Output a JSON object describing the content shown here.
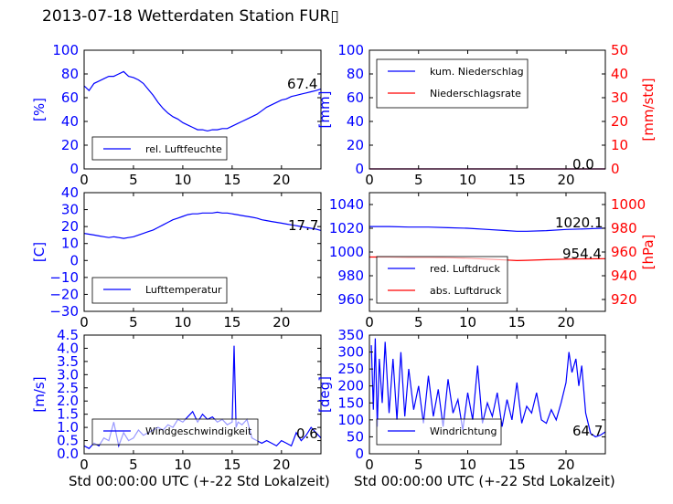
{
  "title": "2013-07-18 Wetterdaten Station FUR▯",
  "colors": {
    "left_axis": "#0000ff",
    "right_axis": "#ff0000",
    "frame": "#000000"
  },
  "xlabel": "Std 00:00:00 UTC (+-22 Std Lokalzeit)",
  "chart_data": [
    {
      "id": "humidity",
      "type": "line",
      "xlim": [
        0,
        24
      ],
      "ylim": [
        0,
        100
      ],
      "xticks": [
        "0",
        "5",
        "10",
        "15",
        "20"
      ],
      "yticks": [
        "0",
        "20",
        "40",
        "60",
        "80",
        "100"
      ],
      "ylabel": "[%]",
      "last_value_label": "67.4",
      "legend": [
        "rel. Luftfeuchte"
      ],
      "series": [
        {
          "name": "rel. Luftfeuchte",
          "color": "#0000ff",
          "x": [
            0,
            0.5,
            1,
            1.5,
            2,
            2.5,
            3,
            3.5,
            4,
            4.5,
            5,
            5.5,
            6,
            6.5,
            7,
            7.5,
            8,
            8.5,
            9,
            9.5,
            10,
            10.5,
            11,
            11.5,
            12,
            12.5,
            13,
            13.5,
            14,
            14.5,
            15,
            15.5,
            16,
            16.5,
            17,
            17.5,
            18,
            18.5,
            19,
            19.5,
            20,
            20.5,
            21,
            21.5,
            22,
            22.5,
            23,
            23.5,
            24
          ],
          "y": [
            70,
            66,
            72,
            74,
            76,
            78,
            78,
            80,
            82,
            78,
            77,
            75,
            72,
            67,
            62,
            56,
            51,
            47,
            44,
            42,
            39,
            37,
            35,
            33,
            33,
            32,
            33,
            33,
            34,
            34,
            36,
            38,
            40,
            42,
            44,
            46,
            49,
            52,
            54,
            56,
            58,
            59,
            61,
            62,
            63,
            64,
            65,
            66,
            67.4
          ]
        }
      ]
    },
    {
      "id": "precipitation",
      "type": "line",
      "xlim": [
        0,
        24
      ],
      "ylim": [
        0,
        100
      ],
      "ylim_right": [
        0,
        50
      ],
      "xticks": [
        "0",
        "5",
        "10",
        "15",
        "20"
      ],
      "yticks": [
        "0",
        "20",
        "40",
        "60",
        "80",
        "100"
      ],
      "yticks_right": [
        "0",
        "10",
        "20",
        "30",
        "40",
        "50"
      ],
      "ylabel": "[mm]",
      "ylabel_right": "[mm/std]",
      "last_value_label": "0.0",
      "legend": [
        "kum. Niederschlag",
        "Niederschlagsrate"
      ],
      "series": [
        {
          "name": "kum. Niederschlag",
          "color": "#0000ff",
          "axis": "left",
          "x": [
            0,
            24
          ],
          "y": [
            0,
            0
          ]
        },
        {
          "name": "Niederschlagsrate",
          "color": "#ff0000",
          "axis": "right",
          "x": [
            0,
            24
          ],
          "y": [
            0,
            0
          ]
        }
      ]
    },
    {
      "id": "temperature",
      "type": "line",
      "xlim": [
        0,
        24
      ],
      "ylim": [
        -30,
        40
      ],
      "xticks": [
        "0",
        "5",
        "10",
        "15",
        "20"
      ],
      "yticks": [
        "−30",
        "−20",
        "−10",
        "0",
        "10",
        "20",
        "30",
        "40"
      ],
      "ylabel": "[C]",
      "last_value_label": "17.7",
      "legend": [
        "Lufttemperatur"
      ],
      "series": [
        {
          "name": "Lufttemperatur",
          "color": "#0000ff",
          "x": [
            0,
            0.5,
            1,
            1.5,
            2,
            2.5,
            3,
            3.5,
            4,
            4.5,
            5,
            5.5,
            6,
            6.5,
            7,
            7.5,
            8,
            8.5,
            9,
            9.5,
            10,
            10.5,
            11,
            11.5,
            12,
            12.5,
            13,
            13.5,
            14,
            14.5,
            15,
            15.5,
            16,
            16.5,
            17,
            17.5,
            18,
            18.5,
            19,
            19.5,
            20,
            20.5,
            21,
            21.5,
            22,
            22.5,
            23,
            23.5,
            24
          ],
          "y": [
            16,
            15.5,
            15,
            14.5,
            14,
            13.5,
            14,
            13.5,
            13,
            13.5,
            14,
            15,
            16,
            17,
            18,
            19.5,
            21,
            22.5,
            24,
            25,
            26,
            27,
            27.5,
            27.5,
            28,
            28,
            28,
            28.5,
            28,
            28,
            27.5,
            27,
            26.5,
            26,
            25.5,
            25,
            24,
            23.5,
            23,
            22.5,
            22,
            21.5,
            21,
            20.5,
            20,
            19.5,
            19,
            18.5,
            17.7
          ]
        }
      ]
    },
    {
      "id": "pressure",
      "type": "line",
      "xlim": [
        0,
        24
      ],
      "ylim": [
        950,
        1050
      ],
      "ylim_right": [
        910,
        1010
      ],
      "xticks": [
        "0",
        "5",
        "10",
        "15",
        "20"
      ],
      "yticks": [
        "960",
        "980",
        "1000",
        "1020",
        "1040"
      ],
      "yticks_right": [
        "920",
        "940",
        "960",
        "980",
        "1000"
      ],
      "ylabel_right": "[hPa]",
      "last_value_label": "1020.1",
      "last_value_label_2": "954.4",
      "legend": [
        "red. Luftdruck",
        "abs. Luftdruck"
      ],
      "series": [
        {
          "name": "red. Luftdruck",
          "color": "#0000ff",
          "axis": "left",
          "x": [
            0,
            2,
            4,
            6,
            8,
            10,
            12,
            14,
            15,
            16,
            18,
            20,
            22,
            24
          ],
          "y": [
            1021.5,
            1021.5,
            1021,
            1021,
            1020.5,
            1020,
            1019,
            1018,
            1017.5,
            1017.5,
            1018,
            1019,
            1019.5,
            1020.1
          ]
        },
        {
          "name": "abs. Luftdruck",
          "color": "#ff0000",
          "axis": "right",
          "x": [
            0,
            2,
            4,
            6,
            8,
            10,
            12,
            14,
            15,
            16,
            18,
            20,
            22,
            24
          ],
          "y": [
            955.8,
            955.8,
            955.5,
            955.5,
            955.2,
            954.8,
            954,
            953.2,
            952.8,
            953,
            953.5,
            954,
            954.2,
            954.4
          ]
        }
      ]
    },
    {
      "id": "windspeed",
      "type": "line",
      "xlim": [
        0,
        24
      ],
      "ylim": [
        0,
        4.5
      ],
      "xticks": [
        "0",
        "5",
        "10",
        "15",
        "20"
      ],
      "yticks": [
        "0.0",
        "0.5",
        "1.0",
        "1.5",
        "2.0",
        "2.5",
        "3.0",
        "3.5",
        "4.0",
        "4.5"
      ],
      "ylabel": "[m/s]",
      "last_value_label": "0.6",
      "legend": [
        "Windgeschwindigkeit"
      ],
      "series": [
        {
          "name": "Windgeschwindigkeit",
          "color": "#0000ff",
          "x": [
            0,
            0.5,
            1,
            1.5,
            2,
            2.5,
            3,
            3.5,
            4,
            4.5,
            5,
            5.5,
            6,
            6.5,
            7,
            7.5,
            8,
            8.5,
            9,
            9.5,
            10,
            10.5,
            11,
            11.5,
            12,
            12.5,
            13,
            13.5,
            14,
            14.5,
            15,
            15.2,
            15.4,
            15.6,
            16,
            16.5,
            17,
            17.5,
            18,
            18.5,
            19,
            19.5,
            20,
            20.5,
            21,
            21.5,
            22,
            22.5,
            23,
            23.5,
            24
          ],
          "y": [
            0.3,
            0.2,
            0.4,
            0.3,
            0.6,
            0.5,
            1.2,
            0.3,
            0.8,
            0.5,
            0.6,
            0.9,
            0.7,
            0.8,
            0.9,
            1.0,
            0.9,
            1.1,
            1.0,
            1.3,
            1.2,
            1.4,
            1.6,
            1.2,
            1.5,
            1.3,
            1.4,
            1.2,
            1.3,
            1.1,
            1.2,
            4.1,
            1.0,
            1.2,
            1.1,
            1.3,
            0.6,
            0.5,
            0.4,
            0.5,
            0.4,
            0.3,
            0.5,
            0.4,
            0.3,
            0.8,
            0.5,
            0.7,
            1.0,
            0.8,
            0.6
          ]
        }
      ]
    },
    {
      "id": "winddirection",
      "type": "line",
      "xlim": [
        0,
        24
      ],
      "ylim": [
        0,
        350
      ],
      "xticks": [
        "0",
        "5",
        "10",
        "15",
        "20"
      ],
      "yticks": [
        "0",
        "50",
        "100",
        "150",
        "200",
        "250",
        "300",
        "350"
      ],
      "ylabel": "[deg]",
      "last_value_label": "64.7",
      "legend": [
        "Windrichtung"
      ],
      "series": [
        {
          "name": "Windrichtung",
          "color": "#0000ff",
          "x": [
            0.2,
            0.4,
            0.6,
            0.8,
            1.0,
            1.3,
            1.6,
            2,
            2.4,
            2.8,
            3.2,
            3.6,
            4,
            4.5,
            5,
            5.5,
            6,
            6.5,
            7,
            7.5,
            8,
            8.5,
            9,
            9.5,
            10,
            10.5,
            11,
            11.5,
            12,
            12.5,
            13,
            13.5,
            14,
            14.5,
            15,
            15.5,
            16,
            16.5,
            17,
            17.5,
            18,
            18.5,
            19,
            19.5,
            20,
            20.3,
            20.6,
            21,
            21.3,
            21.6,
            22,
            22.5,
            23,
            23.5,
            24
          ],
          "y": [
            320,
            130,
            340,
            80,
            280,
            150,
            330,
            120,
            280,
            100,
            300,
            110,
            250,
            130,
            200,
            90,
            230,
            110,
            190,
            80,
            220,
            120,
            160,
            70,
            180,
            100,
            260,
            90,
            150,
            110,
            180,
            80,
            160,
            100,
            210,
            90,
            140,
            120,
            180,
            100,
            90,
            130,
            100,
            150,
            210,
            300,
            240,
            280,
            200,
            260,
            120,
            60,
            50,
            55,
            64.7
          ]
        }
      ]
    }
  ]
}
